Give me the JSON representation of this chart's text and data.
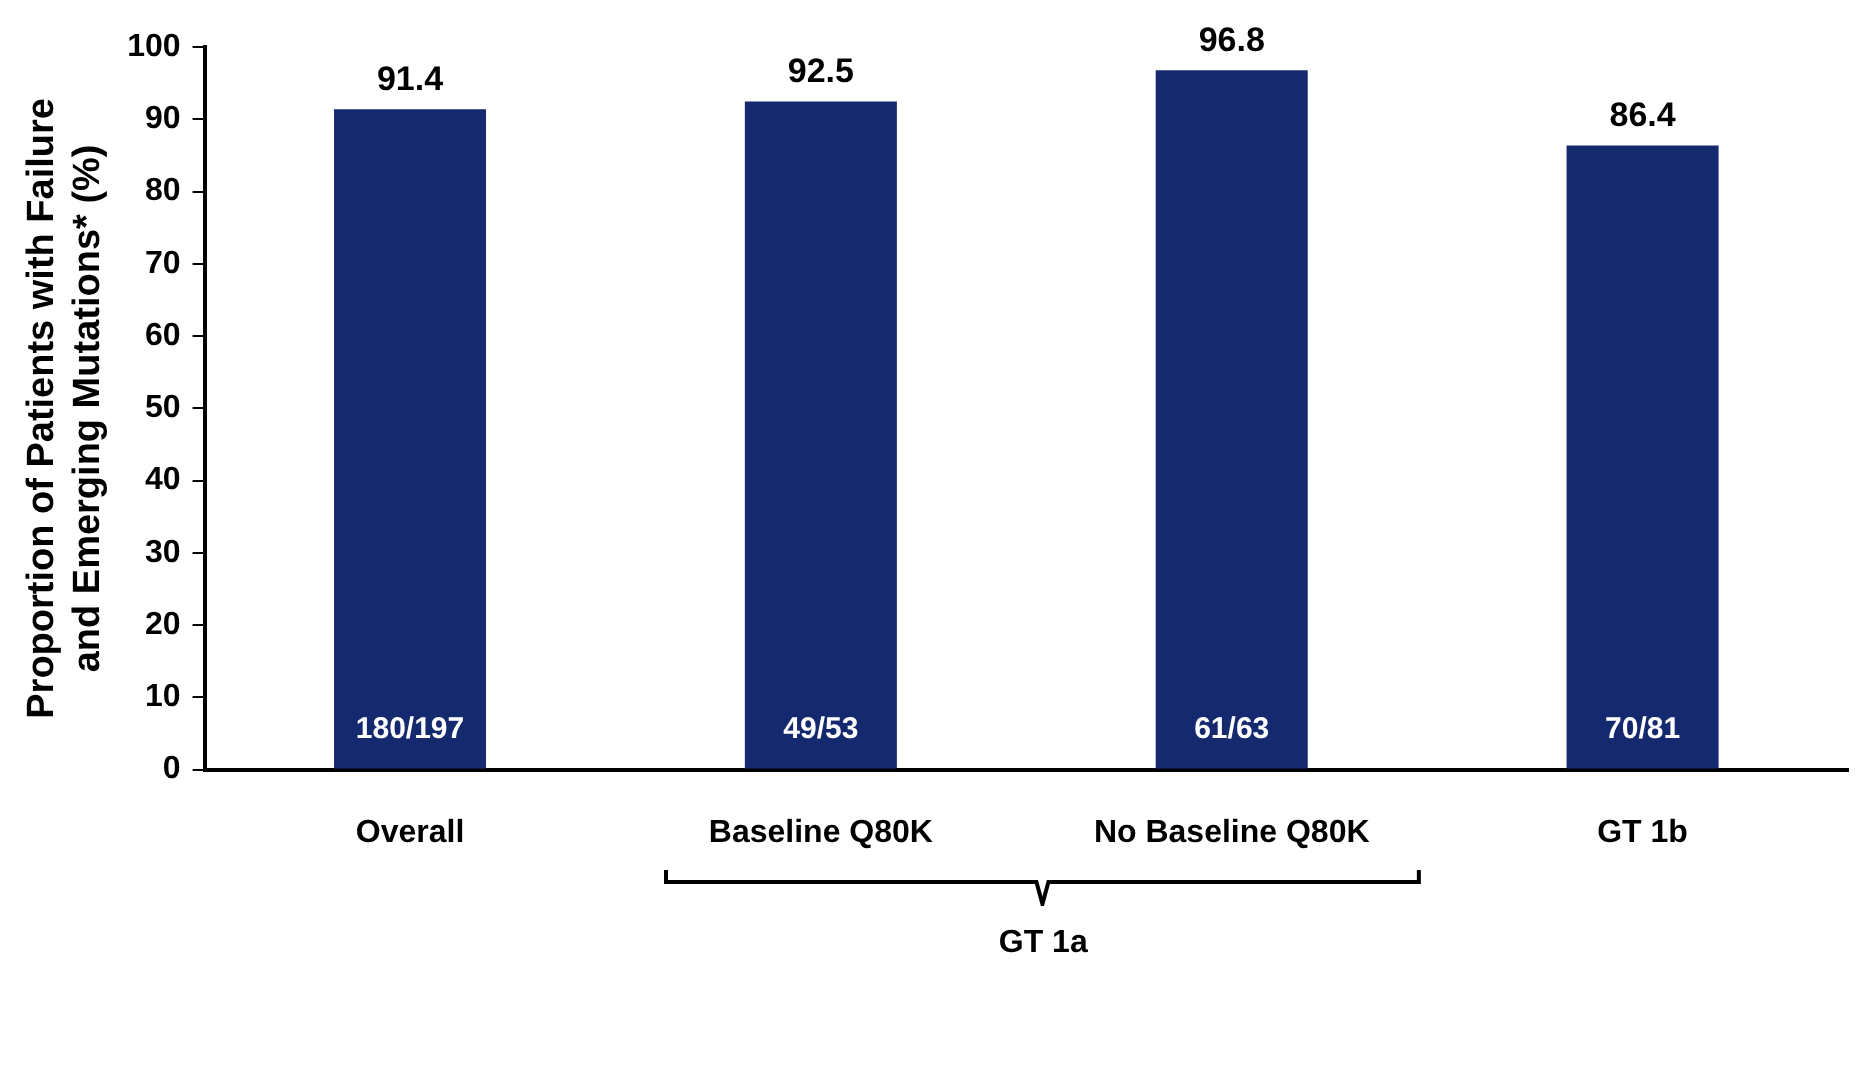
{
  "chart_data": {
    "type": "bar",
    "ylabel": "Proportion of Patients with Failure and Emerging Mutations* (%)",
    "categories": [
      "Overall",
      "Baseline Q80K",
      "No Baseline Q80K",
      "GT 1b"
    ],
    "values": [
      91.4,
      92.5,
      96.8,
      86.4
    ],
    "color": "#152a6e",
    "ylim": [
      0,
      100
    ],
    "yticks": [
      0,
      10,
      20,
      30,
      40,
      50,
      60,
      70,
      80,
      90,
      100
    ],
    "grid": false,
    "legend": false,
    "data_labels": true,
    "annotations": [
      "180/197",
      "49/53",
      "61/63",
      "70/81",
      "GT 1a"
    ]
  }
}
